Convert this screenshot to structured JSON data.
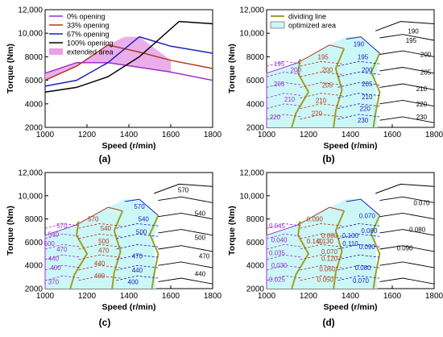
{
  "chart_data": [
    {
      "panel_label": "(a)",
      "type": "line",
      "xlabel": "Speed (r/min)",
      "ylabel": "Torque (Nm)",
      "xlim": [
        1000,
        1800
      ],
      "ylim": [
        2000,
        12000
      ],
      "x_ticks": [
        1000,
        1200,
        1400,
        1600,
        1800
      ],
      "y_ticks": [
        2000,
        4000,
        6000,
        8000,
        10000,
        12000
      ],
      "x_tick_labels": [
        "1000",
        "1200",
        "1400",
        "1600",
        "1800"
      ],
      "y_tick_labels": [
        "2000",
        "4000",
        "6000",
        "8000",
        "10,000",
        "12,000"
      ],
      "legend_position": "top-left",
      "legend": [
        "0% opening",
        "33% opening",
        "67% opening",
        "100% opening",
        "extended area"
      ],
      "series": [
        {
          "name": "0% opening",
          "color": "#9b30d0",
          "points": [
            [
              1000,
              6600
            ],
            [
              1150,
              7500
            ],
            [
              1300,
              7500
            ],
            [
              1450,
              7100
            ],
            [
              1600,
              6700
            ],
            [
              1800,
              6000
            ]
          ]
        },
        {
          "name": "33% opening",
          "color": "#b03a1a",
          "points": [
            [
              1000,
              6000
            ],
            [
              1150,
              7200
            ],
            [
              1300,
              9000
            ],
            [
              1450,
              8400
            ],
            [
              1600,
              7700
            ],
            [
              1800,
              7000
            ]
          ]
        },
        {
          "name": "67% opening",
          "color": "#2020c0",
          "points": [
            [
              1000,
              5500
            ],
            [
              1150,
              6000
            ],
            [
              1300,
              7500
            ],
            [
              1450,
              9700
            ],
            [
              1600,
              8900
            ],
            [
              1800,
              8300
            ]
          ]
        },
        {
          "name": "100% opening",
          "color": "#000000",
          "points": [
            [
              1000,
              5000
            ],
            [
              1150,
              5400
            ],
            [
              1300,
              6300
            ],
            [
              1450,
              8000
            ],
            [
              1640,
              11000
            ],
            [
              1800,
              10800
            ]
          ]
        }
      ],
      "extended_area": {
        "name": "extended area",
        "color": "#e8a0e8",
        "polygon": [
          [
            1000,
            6000
          ],
          [
            1150,
            7200
          ],
          [
            1300,
            9000
          ],
          [
            1380,
            9700
          ],
          [
            1450,
            9700
          ],
          [
            1600,
            7700
          ],
          [
            1600,
            6700
          ],
          [
            1450,
            7100
          ],
          [
            1300,
            7500
          ],
          [
            1150,
            7500
          ],
          [
            1000,
            6600
          ]
        ]
      }
    },
    {
      "panel_label": "(b)",
      "type": "contour",
      "xlabel": "Speed (r/min)",
      "ylabel": "Torque (Nm)",
      "xlim": [
        1000,
        1800
      ],
      "ylim": [
        2000,
        12000
      ],
      "x_ticks": [
        1000,
        1200,
        1400,
        1600,
        1800
      ],
      "y_ticks": [
        2000,
        4000,
        6000,
        8000,
        10000,
        12000
      ],
      "x_tick_labels": [
        "1000",
        "1200",
        "1400",
        "1600",
        "1800"
      ],
      "y_tick_labels": [
        "2000",
        "4000",
        "6000",
        "8000",
        "10,000",
        "12,000"
      ],
      "legend_position": "top-left",
      "legend": [
        "dividing line",
        "optimized area"
      ],
      "contour_labels": [
        {
          "text": "195",
          "x": 1060,
          "y": 7400,
          "color": "#9b30d0"
        },
        {
          "text": "200",
          "x": 1140,
          "y": 6900,
          "color": "#9b30d0"
        },
        {
          "text": "205",
          "x": 1060,
          "y": 5700,
          "color": "#9b30d0"
        },
        {
          "text": "210",
          "x": 1110,
          "y": 4400,
          "color": "#9b30d0"
        },
        {
          "text": "220",
          "x": 1040,
          "y": 2900,
          "color": "#9b30d0"
        },
        {
          "text": "195",
          "x": 1270,
          "y": 8000,
          "color": "#b03a1a"
        },
        {
          "text": "200",
          "x": 1290,
          "y": 6900,
          "color": "#b03a1a"
        },
        {
          "text": "205",
          "x": 1290,
          "y": 5600,
          "color": "#b03a1a"
        },
        {
          "text": "210",
          "x": 1260,
          "y": 4300,
          "color": "#b03a1a"
        },
        {
          "text": "220",
          "x": 1240,
          "y": 3200,
          "color": "#b03a1a"
        },
        {
          "text": "190",
          "x": 1440,
          "y": 9100,
          "color": "#2020c0"
        },
        {
          "text": "195",
          "x": 1460,
          "y": 8000,
          "color": "#2020c0"
        },
        {
          "text": "200",
          "x": 1480,
          "y": 6900,
          "color": "#2020c0"
        },
        {
          "text": "205",
          "x": 1480,
          "y": 5700,
          "color": "#2020c0"
        },
        {
          "text": "210",
          "x": 1480,
          "y": 4600,
          "color": "#2020c0"
        },
        {
          "text": "220",
          "x": 1470,
          "y": 3600,
          "color": "#2020c0"
        },
        {
          "text": "230",
          "x": 1460,
          "y": 2600,
          "color": "#2020c0"
        },
        {
          "text": "190",
          "x": 1700,
          "y": 10200,
          "color": "#000000"
        },
        {
          "text": "195",
          "x": 1690,
          "y": 9400,
          "color": "#000000"
        },
        {
          "text": "200",
          "x": 1760,
          "y": 8200,
          "color": "#000000"
        },
        {
          "text": "205",
          "x": 1760,
          "y": 6700,
          "color": "#000000"
        },
        {
          "text": "210",
          "x": 1740,
          "y": 5300,
          "color": "#000000"
        },
        {
          "text": "220",
          "x": 1740,
          "y": 4000,
          "color": "#000000"
        },
        {
          "text": "230",
          "x": 1740,
          "y": 2900,
          "color": "#000000"
        }
      ]
    },
    {
      "panel_label": "(c)",
      "type": "contour",
      "xlabel": "Speed (r/min)",
      "ylabel": "Torque (Nm)",
      "xlim": [
        1000,
        1800
      ],
      "ylim": [
        2000,
        12000
      ],
      "x_ticks": [
        1000,
        1200,
        1400,
        1600,
        1800
      ],
      "y_ticks": [
        2000,
        4000,
        6000,
        8000,
        10000,
        12000
      ],
      "x_tick_labels": [
        "1000",
        "1200",
        "1400",
        "1600",
        "1800"
      ],
      "y_tick_labels": [
        "2000",
        "4000",
        "6000",
        "8000",
        "10,000",
        "12,000"
      ],
      "contour_labels": [
        {
          "text": "570",
          "x": 1080,
          "y": 7400,
          "color": "#9b30d0"
        },
        {
          "text": "540",
          "x": 1040,
          "y": 6700,
          "color": "#9b30d0"
        },
        {
          "text": "500",
          "x": 1020,
          "y": 5900,
          "color": "#9b30d0"
        },
        {
          "text": "470",
          "x": 1080,
          "y": 5400,
          "color": "#9b30d0"
        },
        {
          "text": "440",
          "x": 1040,
          "y": 4600,
          "color": "#9b30d0"
        },
        {
          "text": "400",
          "x": 1050,
          "y": 3800,
          "color": "#9b30d0"
        },
        {
          "text": "370",
          "x": 1040,
          "y": 2600,
          "color": "#9b30d0"
        },
        {
          "text": "570",
          "x": 1230,
          "y": 8000,
          "color": "#b03a1a"
        },
        {
          "text": "540",
          "x": 1290,
          "y": 7200,
          "color": "#b03a1a"
        },
        {
          "text": "500",
          "x": 1280,
          "y": 6100,
          "color": "#b03a1a"
        },
        {
          "text": "470",
          "x": 1280,
          "y": 5300,
          "color": "#b03a1a"
        },
        {
          "text": "440",
          "x": 1260,
          "y": 4200,
          "color": "#b03a1a"
        },
        {
          "text": "400",
          "x": 1260,
          "y": 3100,
          "color": "#b03a1a"
        },
        {
          "text": "570",
          "x": 1450,
          "y": 9100,
          "color": "#2020c0"
        },
        {
          "text": "540",
          "x": 1470,
          "y": 8000,
          "color": "#2020c0"
        },
        {
          "text": "500",
          "x": 1460,
          "y": 6900,
          "color": "#2020c0"
        },
        {
          "text": "470",
          "x": 1440,
          "y": 4800,
          "color": "#2020c0"
        },
        {
          "text": "440",
          "x": 1440,
          "y": 3600,
          "color": "#2020c0"
        },
        {
          "text": "400",
          "x": 1420,
          "y": 2600,
          "color": "#2020c0"
        },
        {
          "text": "570",
          "x": 1660,
          "y": 10500,
          "color": "#000000"
        },
        {
          "text": "540",
          "x": 1740,
          "y": 8500,
          "color": "#000000"
        },
        {
          "text": "500",
          "x": 1740,
          "y": 6400,
          "color": "#000000"
        },
        {
          "text": "470",
          "x": 1760,
          "y": 4800,
          "color": "#000000"
        },
        {
          "text": "440",
          "x": 1740,
          "y": 3300,
          "color": "#000000"
        }
      ]
    },
    {
      "panel_label": "(d)",
      "type": "contour",
      "xlabel": "Speed (r/min)",
      "ylabel": "Torque (Nm)",
      "xlim": [
        1000,
        1800
      ],
      "ylim": [
        2000,
        12000
      ],
      "x_ticks": [
        1000,
        1200,
        1400,
        1600,
        1800
      ],
      "y_ticks": [
        2000,
        4000,
        6000,
        8000,
        10000,
        12000
      ],
      "x_tick_labels": [
        "1000",
        "1200",
        "1400",
        "1600",
        "1800"
      ],
      "y_tick_labels": [
        "2000",
        "4000",
        "6000",
        "8000",
        "10,000",
        "12,000"
      ],
      "contour_labels": [
        {
          "text": "0.045",
          "x": 1050,
          "y": 7400,
          "color": "#9b30d0"
        },
        {
          "text": "0.040",
          "x": 1060,
          "y": 6200,
          "color": "#9b30d0"
        },
        {
          "text": "0.035",
          "x": 1050,
          "y": 5100,
          "color": "#9b30d0"
        },
        {
          "text": "0.030",
          "x": 1060,
          "y": 4000,
          "color": "#9b30d0"
        },
        {
          "text": "0.025",
          "x": 1050,
          "y": 2800,
          "color": "#9b30d0"
        },
        {
          "text": "0.090",
          "x": 1230,
          "y": 8000,
          "color": "#b03a1a"
        },
        {
          "text": "0.080",
          "x": 1300,
          "y": 6600,
          "color": "#b03a1a"
        },
        {
          "text": "0.140",
          "x": 1230,
          "y": 6100,
          "color": "#b03a1a"
        },
        {
          "text": "0.130",
          "x": 1280,
          "y": 6100,
          "color": "#b03a1a"
        },
        {
          "text": "0.070",
          "x": 1300,
          "y": 5200,
          "color": "#b03a1a"
        },
        {
          "text": "0.120",
          "x": 1300,
          "y": 4600,
          "color": "#b03a1a"
        },
        {
          "text": "0.060",
          "x": 1290,
          "y": 3700,
          "color": "#b03a1a"
        },
        {
          "text": "0.050",
          "x": 1280,
          "y": 2800,
          "color": "#b03a1a"
        },
        {
          "text": "0.070",
          "x": 1480,
          "y": 8300,
          "color": "#2020c0"
        },
        {
          "text": "0.080",
          "x": 1490,
          "y": 7000,
          "color": "#2020c0"
        },
        {
          "text": "0.100",
          "x": 1400,
          "y": 6600,
          "color": "#2020c0"
        },
        {
          "text": "0.110",
          "x": 1400,
          "y": 5900,
          "color": "#2020c0"
        },
        {
          "text": "0.090",
          "x": 1480,
          "y": 5600,
          "color": "#2020c0"
        },
        {
          "text": "0.080",
          "x": 1460,
          "y": 3800,
          "color": "#2020c0"
        },
        {
          "text": "0.070",
          "x": 1450,
          "y": 2700,
          "color": "#2020c0"
        },
        {
          "text": "0.070",
          "x": 1740,
          "y": 9400,
          "color": "#000000"
        },
        {
          "text": "0.080",
          "x": 1720,
          "y": 7100,
          "color": "#000000"
        },
        {
          "text": "0.090",
          "x": 1660,
          "y": 5500,
          "color": "#000000"
        }
      ]
    }
  ],
  "panel_c_d_series": {
    "upper_envelope": [
      [
        1000,
        6600
      ],
      [
        1150,
        7500
      ],
      [
        1300,
        9000
      ],
      [
        1380,
        9700
      ],
      [
        1450,
        9700
      ],
      [
        1600,
        10400
      ],
      [
        1800,
        10800
      ]
    ],
    "region_boundaries": [
      {
        "color": "#9b30d0",
        "points": [
          [
            1000,
            6600
          ],
          [
            1150,
            7500
          ],
          [
            1000,
            6600
          ]
        ]
      }
    ]
  }
}
